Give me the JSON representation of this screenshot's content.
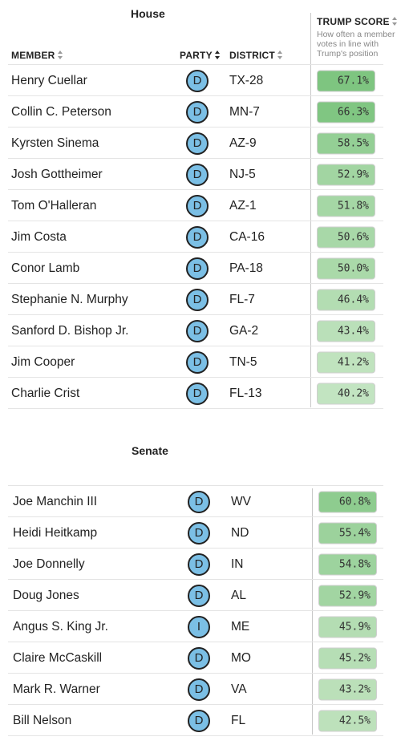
{
  "house": {
    "title": "House",
    "headers": {
      "member": "MEMBER",
      "party": "PARTY",
      "district": "DISTRICT",
      "score": "TRUMP SCORE"
    },
    "score_desc": "How often a member\nvotes in line with\nTrump's position",
    "rows": [
      {
        "name": "Henry Cuellar",
        "party": "D",
        "district": "TX-28",
        "score": "67.1%",
        "value": 67.1
      },
      {
        "name": "Collin C. Peterson",
        "party": "D",
        "district": "MN-7",
        "score": "66.3%",
        "value": 66.3
      },
      {
        "name": "Kyrsten Sinema",
        "party": "D",
        "district": "AZ-9",
        "score": "58.5%",
        "value": 58.5
      },
      {
        "name": "Josh Gottheimer",
        "party": "D",
        "district": "NJ-5",
        "score": "52.9%",
        "value": 52.9
      },
      {
        "name": "Tom O'Halleran",
        "party": "D",
        "district": "AZ-1",
        "score": "51.8%",
        "value": 51.8
      },
      {
        "name": "Jim Costa",
        "party": "D",
        "district": "CA-16",
        "score": "50.6%",
        "value": 50.6
      },
      {
        "name": "Conor Lamb",
        "party": "D",
        "district": "PA-18",
        "score": "50.0%",
        "value": 50.0
      },
      {
        "name": "Stephanie N. Murphy",
        "party": "D",
        "district": "FL-7",
        "score": "46.4%",
        "value": 46.4
      },
      {
        "name": "Sanford D. Bishop Jr.",
        "party": "D",
        "district": "GA-2",
        "score": "43.4%",
        "value": 43.4
      },
      {
        "name": "Jim Cooper",
        "party": "D",
        "district": "TN-5",
        "score": "41.2%",
        "value": 41.2
      },
      {
        "name": "Charlie Crist",
        "party": "D",
        "district": "FL-13",
        "score": "40.2%",
        "value": 40.2
      }
    ]
  },
  "senate": {
    "title": "Senate",
    "rows": [
      {
        "name": "Joe Manchin III",
        "party": "D",
        "district": "WV",
        "score": "60.8%",
        "value": 60.8
      },
      {
        "name": "Heidi Heitkamp",
        "party": "D",
        "district": "ND",
        "score": "55.4%",
        "value": 55.4
      },
      {
        "name": "Joe Donnelly",
        "party": "D",
        "district": "IN",
        "score": "54.8%",
        "value": 54.8
      },
      {
        "name": "Doug Jones",
        "party": "D",
        "district": "AL",
        "score": "52.9%",
        "value": 52.9
      },
      {
        "name": "Angus S. King Jr.",
        "party": "I",
        "district": "ME",
        "score": "45.9%",
        "value": 45.9
      },
      {
        "name": "Claire McCaskill",
        "party": "D",
        "district": "MO",
        "score": "45.2%",
        "value": 45.2
      },
      {
        "name": "Mark R. Warner",
        "party": "D",
        "district": "VA",
        "score": "43.2%",
        "value": 43.2
      },
      {
        "name": "Bill Nelson",
        "party": "D",
        "district": "FL",
        "score": "42.5%",
        "value": 42.5
      }
    ]
  },
  "colors": {
    "badge_fill": "#7bbfe5",
    "score_high": "#7cc47e",
    "score_low": "#c3e4c1"
  },
  "icons": {
    "sort": "sort-arrows-icon"
  }
}
